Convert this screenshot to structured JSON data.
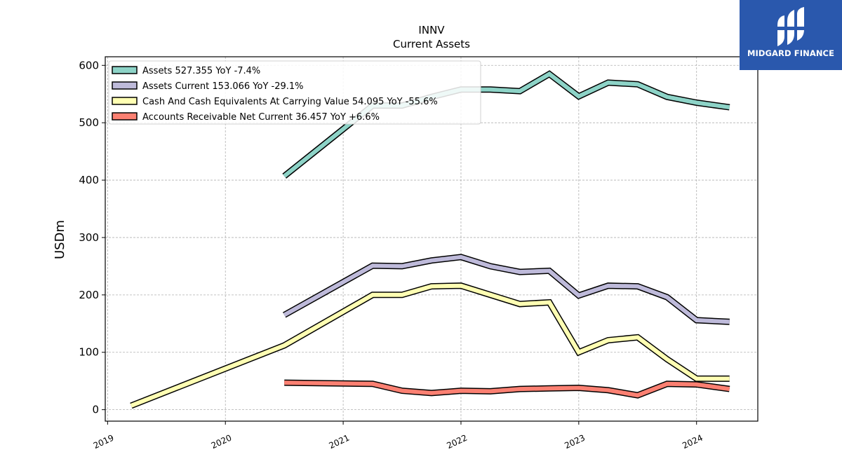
{
  "chart_data": {
    "type": "line",
    "title": "INNV",
    "subtitle": "Current  Assets",
    "ylabel": "USDm",
    "xlabel": "",
    "ylim": [
      -20,
      615
    ],
    "xlim": [
      2018.98,
      2024.52
    ],
    "yticks": [
      0,
      100,
      200,
      300,
      400,
      500,
      600
    ],
    "xticks": [
      2019,
      2020,
      2021,
      2022,
      2023,
      2024
    ],
    "grid": true,
    "legend_position": "top-left",
    "series": [
      {
        "name": "Assets",
        "legend": "Assets  527.355 YoY -7.4%",
        "color": "#8dd3c7",
        "x": [
          2020.5,
          2021.0,
          2021.25,
          2021.5,
          2021.75,
          2022.0,
          2022.25,
          2022.5,
          2022.75,
          2023.0,
          2023.25,
          2023.5,
          2023.75,
          2024.0,
          2024.28
        ],
        "y": [
          407,
          489,
          530,
          530,
          545,
          558,
          558,
          555,
          585,
          546,
          570,
          567,
          545,
          535,
          527
        ]
      },
      {
        "name": "Assets Current",
        "legend": "Assets Current  153.066 YoY -29.1%",
        "color": "#bebada",
        "x": [
          2020.5,
          2021.25,
          2021.5,
          2021.75,
          2022.0,
          2022.25,
          2022.5,
          2022.75,
          2023.0,
          2023.25,
          2023.5,
          2023.75,
          2024.0,
          2024.28
        ],
        "y": [
          165,
          251,
          250,
          260,
          266,
          250,
          240,
          242,
          199,
          216,
          215,
          196,
          156,
          153
        ]
      },
      {
        "name": "Cash And Cash Equivalents At Carrying Value",
        "legend": "Cash And Cash Equivalents At Carrying Value  54.095 YoY -55.6%",
        "color": "#ffffb3",
        "x": [
          2019.2,
          2020.5,
          2021.25,
          2021.5,
          2021.75,
          2022.0,
          2022.25,
          2022.5,
          2022.75,
          2023.0,
          2023.25,
          2023.5,
          2023.75,
          2024.0,
          2024.28
        ],
        "y": [
          7,
          112,
          200,
          200,
          215,
          216,
          200,
          184,
          187,
          100,
          121,
          126,
          88,
          54,
          54
        ]
      },
      {
        "name": "Accounts Receivable Net Current",
        "legend": "Accounts Receivable Net Current  36.457 YoY +6.6%",
        "color": "#fb8072",
        "x": [
          2020.5,
          2021.25,
          2021.5,
          2021.75,
          2022.0,
          2022.25,
          2022.5,
          2022.75,
          2023.0,
          2023.25,
          2023.5,
          2023.75,
          2024.0,
          2024.28
        ],
        "y": [
          47,
          45,
          33,
          29,
          33,
          32,
          36,
          37,
          38,
          34,
          25,
          45,
          44,
          36
        ]
      }
    ]
  },
  "watermark": {
    "brand": "MIDGARD FINANCE",
    "background": "#2a58ad"
  }
}
